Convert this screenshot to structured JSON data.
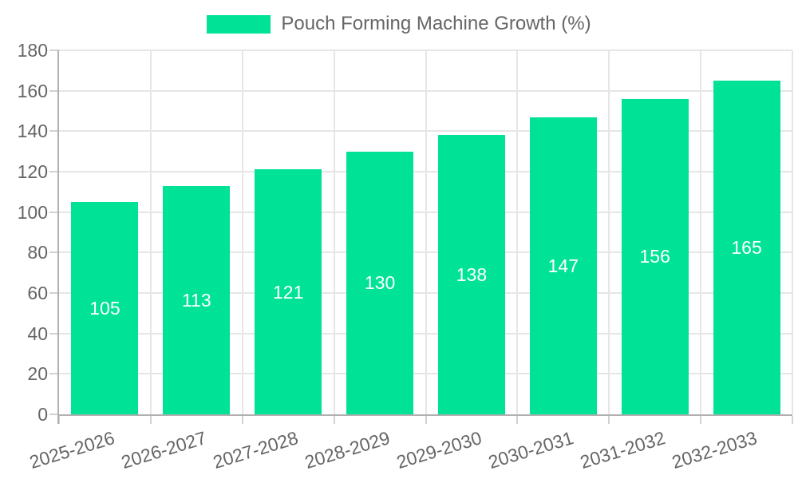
{
  "chart_data": {
    "type": "bar",
    "title": "Pouch Forming Machine Growth (%)",
    "legend": [
      "Pouch Forming Machine Growth (%)"
    ],
    "legend_position": "top-center",
    "categories": [
      "2025-2026",
      "2026-2027",
      "2027-2028",
      "2028-2029",
      "2029-2030",
      "2030-2031",
      "2031-2032",
      "2032-2033"
    ],
    "values": [
      105,
      113,
      121,
      130,
      138,
      147,
      156,
      165
    ],
    "xlabel": "",
    "ylabel": "",
    "ylim": [
      0,
      180
    ],
    "ytick_step": 20,
    "ytick_labels": [
      "0",
      "20",
      "40",
      "60",
      "80",
      "100",
      "120",
      "140",
      "160",
      "180"
    ],
    "grid": "on",
    "x_label_rotation_deg": -17,
    "bar_labels_inside": true,
    "colors": {
      "bar": "#00E396",
      "bar_label": "#ffffff",
      "axis_text": "#666666",
      "gridline": "#e6e6e6",
      "axis_line": "#b0b0b0",
      "tick": "#d2d2d2",
      "background": "#ffffff"
    }
  }
}
